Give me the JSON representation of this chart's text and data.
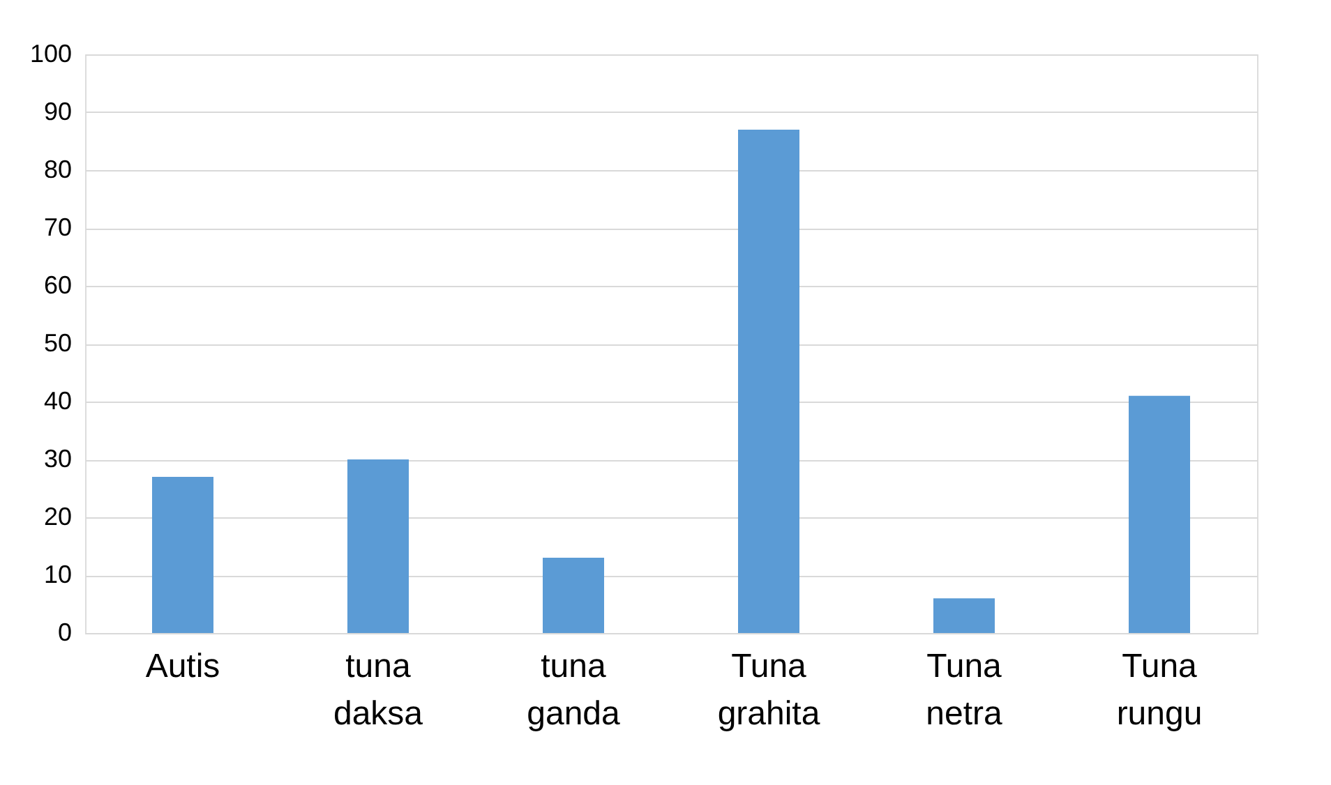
{
  "chart_data": {
    "type": "bar",
    "categories": [
      "Autis",
      "tuna daksa",
      "tuna ganda",
      "Tuna grahita",
      "Tuna netra",
      "Tuna rungu"
    ],
    "values": [
      27,
      30,
      13,
      87,
      6,
      41
    ],
    "color": "#5b9bd5",
    "ylim": [
      0,
      100
    ],
    "yticks": [
      0,
      10,
      20,
      30,
      40,
      50,
      60,
      70,
      80,
      90,
      100
    ],
    "grid": "y"
  }
}
